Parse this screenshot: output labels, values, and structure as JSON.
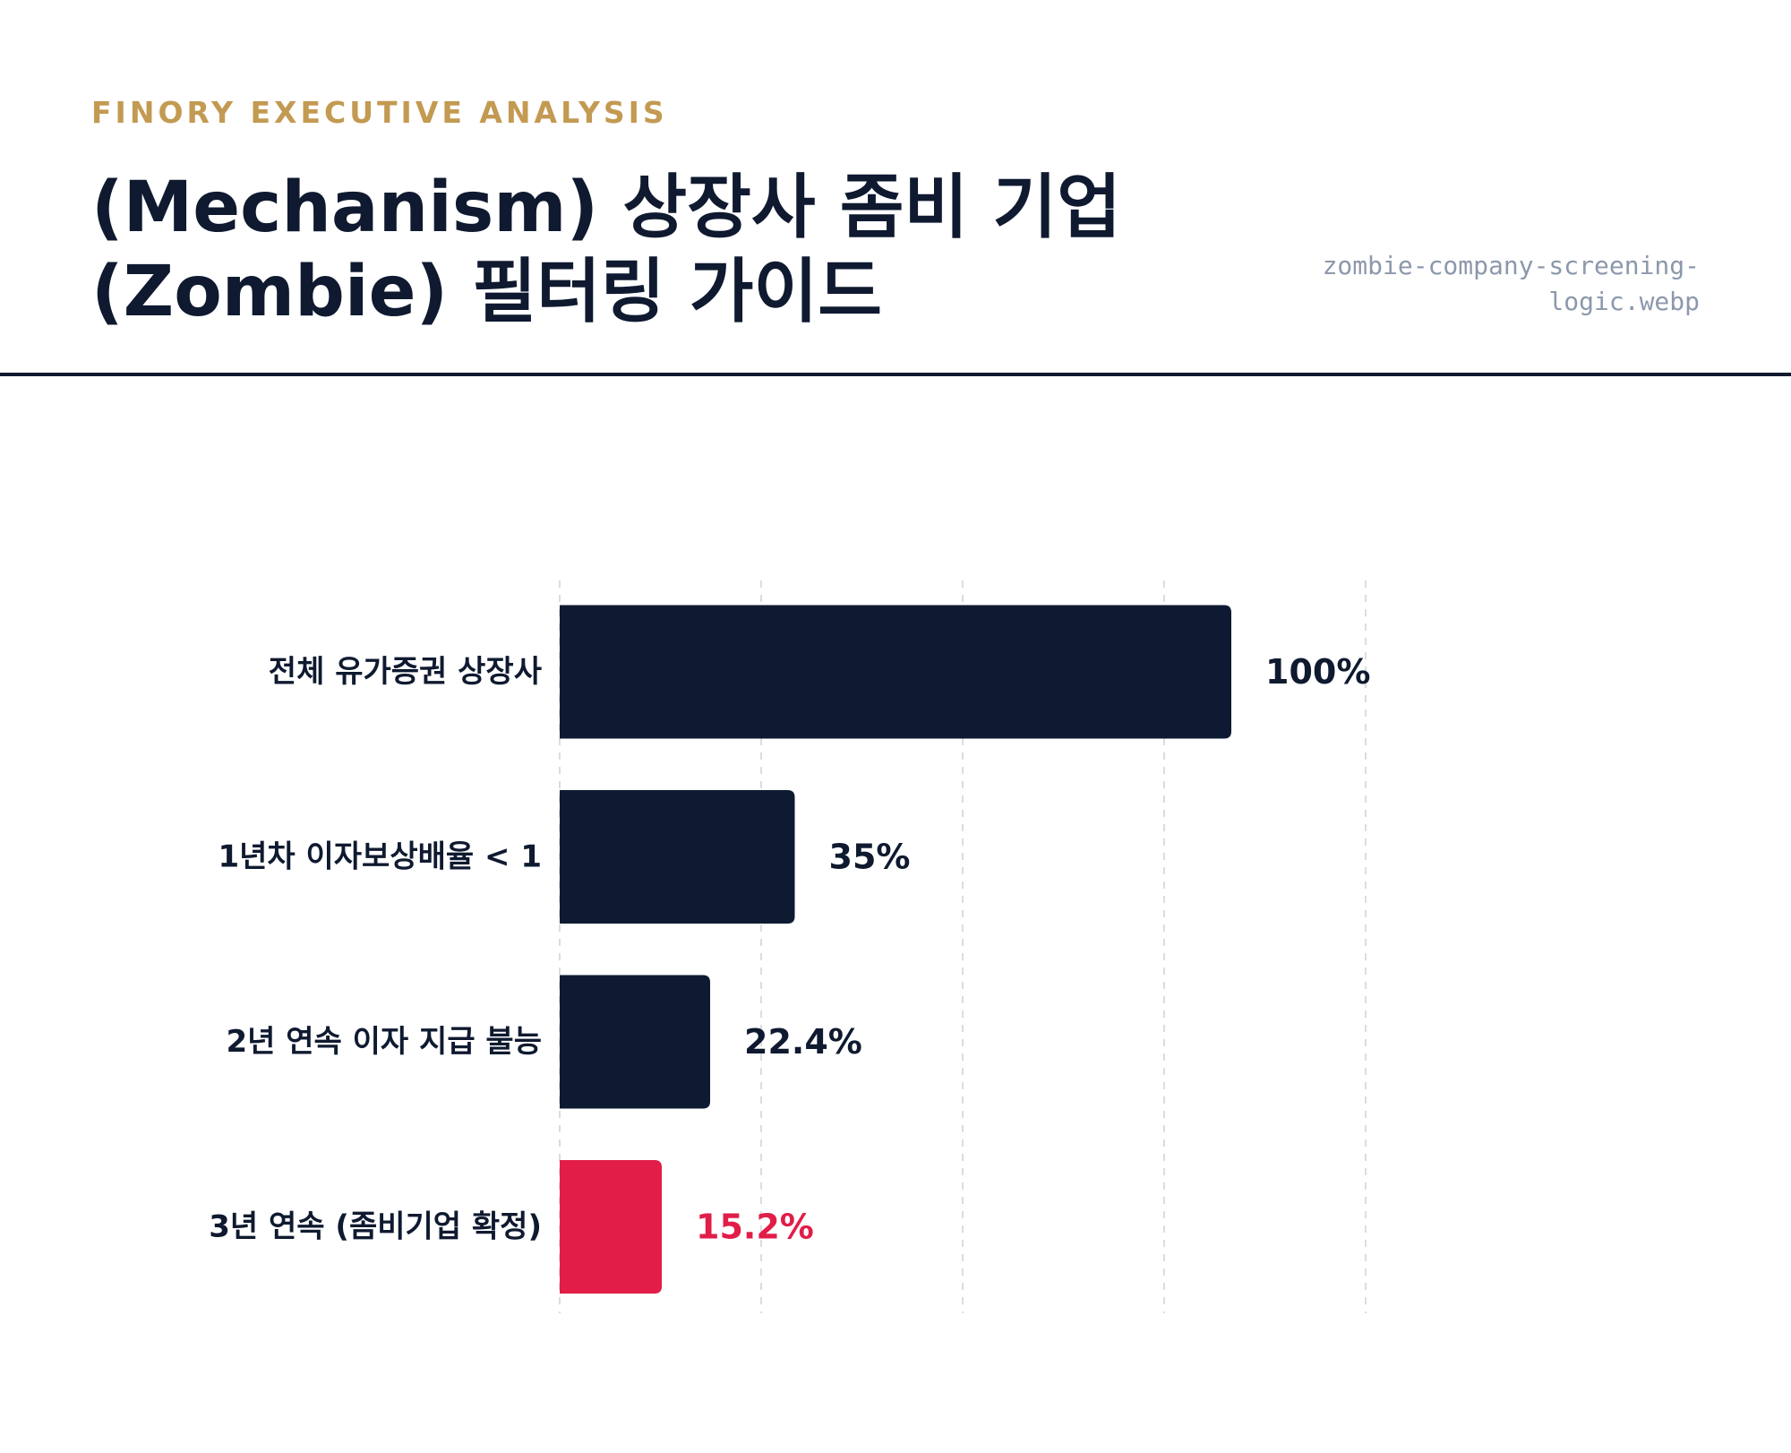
{
  "header": {
    "eyebrow": "FINORY EXECUTIVE ANALYSIS",
    "title_line1": "(Mechanism) 상장사 좀비 기업",
    "title_line2": "(Zombie) 필터링 가이드",
    "filename_line1": "zombie-company-screening-",
    "filename_line2": "logic.webp"
  },
  "colors": {
    "bar_default": "#0e1a31",
    "bar_highlight": "#e11d48",
    "label_default": "#0f1a30",
    "grid": "#d9dde3"
  },
  "chart_data": {
    "type": "bar",
    "orientation": "horizontal",
    "categories": [
      "전체 유가증권 상장사",
      "1년차 이자보상배율 < 1",
      "2년 연속 이자 지급 불능",
      "3년 연속 (좀비기업 확정)"
    ],
    "values": [
      100,
      35,
      22.4,
      15.2
    ],
    "value_labels": [
      "100%",
      "35%",
      "22.4%",
      "15.2%"
    ],
    "highlight_index": 3,
    "xlim": [
      0,
      120
    ],
    "x_gridlines": [
      0,
      30,
      60,
      90,
      120
    ],
    "grid": true,
    "legend": "none"
  }
}
